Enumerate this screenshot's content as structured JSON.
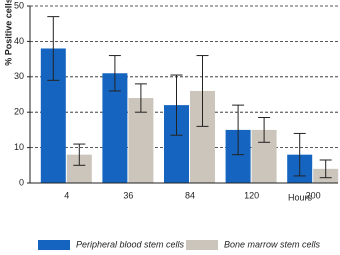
{
  "chart_data": {
    "type": "bar",
    "y_label": "% Positive cells",
    "x_label": "Hours",
    "categories": [
      "4",
      "36",
      "84",
      "120",
      "200"
    ],
    "series": [
      {
        "name": "Peripheral blood stem cells",
        "color": "#1565c0",
        "values": [
          38,
          31,
          22,
          15,
          8
        ],
        "errors": [
          9,
          5,
          8.5,
          7,
          6
        ]
      },
      {
        "name": "Bone marrow stem cells",
        "color": "#cbc5bb",
        "values": [
          8,
          24,
          26,
          15,
          4
        ],
        "errors": [
          3,
          4,
          10,
          3.5,
          2.5
        ]
      }
    ],
    "ylim": [
      0,
      50
    ],
    "yticks": [
      0,
      10,
      20,
      30,
      40,
      50
    ],
    "grid": true
  }
}
